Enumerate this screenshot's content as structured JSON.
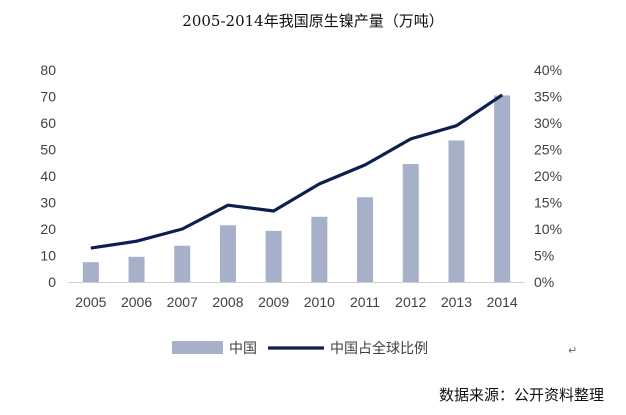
{
  "title": "2005-2014年我国原生镍产量（万吨）",
  "source": "数据来源：公开资料整理",
  "mark": "↵",
  "chart_data": {
    "type": "bar",
    "categories": [
      "2005",
      "2006",
      "2007",
      "2008",
      "2009",
      "2010",
      "2011",
      "2012",
      "2013",
      "2014"
    ],
    "series": [
      {
        "name": "中国",
        "type": "bar",
        "axis": "left",
        "color": "#a6b0c8",
        "values": [
          7.5,
          9.5,
          13.7,
          21.4,
          19.3,
          24.6,
          32.0,
          44.5,
          53.4,
          70.4
        ]
      },
      {
        "name": "中国占全球比例",
        "type": "line",
        "axis": "right",
        "color": "#0d1f4e",
        "values": [
          0.064,
          0.077,
          0.1,
          0.145,
          0.134,
          0.185,
          0.221,
          0.27,
          0.295,
          0.353
        ]
      }
    ],
    "left_axis": {
      "min": 0,
      "max": 80,
      "step": 10,
      "ticks": [
        "0",
        "10",
        "20",
        "30",
        "40",
        "50",
        "60",
        "70",
        "80"
      ]
    },
    "right_axis": {
      "min": 0,
      "max": 0.4,
      "step": 0.05,
      "ticks": [
        "0%",
        "5%",
        "10%",
        "15%",
        "20%",
        "25%",
        "30%",
        "35%",
        "40%"
      ]
    },
    "grid": false,
    "legend": "bottom"
  }
}
